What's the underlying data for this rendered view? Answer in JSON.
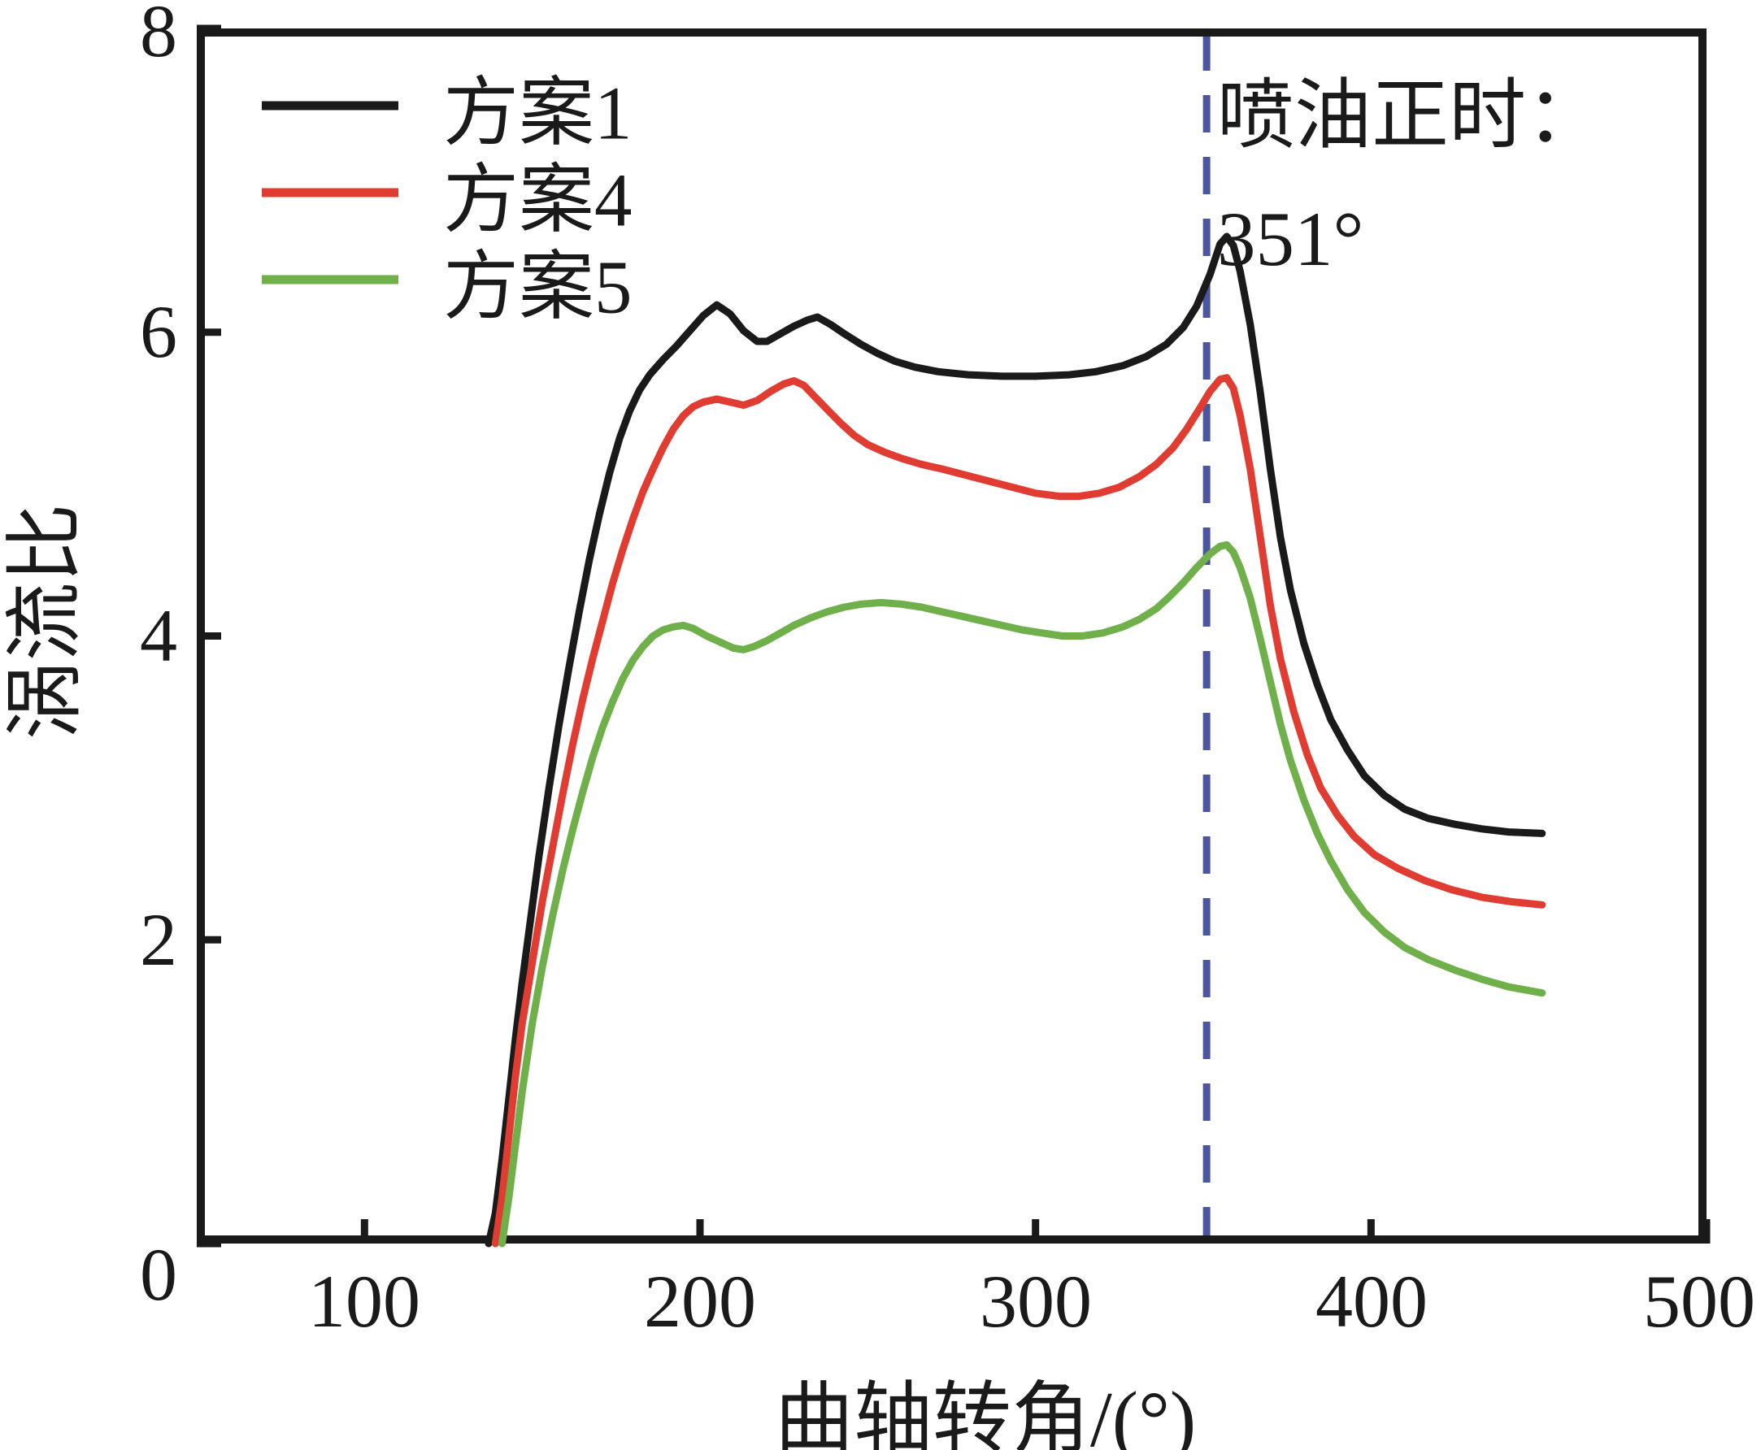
{
  "figure": {
    "background": "#ffffff",
    "axis_color": "#1a1a1a"
  },
  "chart_data": {
    "type": "line",
    "title": "",
    "xlabel": "曲轴转角/(°)",
    "ylabel": "涡流比",
    "xlim": [
      50,
      500
    ],
    "ylim": [
      0,
      8
    ],
    "xticks": [
      100,
      200,
      300,
      400,
      500
    ],
    "yticks": [
      0,
      2,
      4,
      6,
      8
    ],
    "grid": false,
    "legend_position": "upper-left-inside",
    "annotation": {
      "lines": [
        "喷油正时：",
        "351°"
      ],
      "anchor_x": 351,
      "color": "#1a1a1a"
    },
    "reference_line": {
      "type": "vertical-dashed",
      "x": 351,
      "color": "#4a56a0"
    },
    "series": [
      {
        "name": "方案1",
        "color": "#1a1a1a",
        "points": [
          [
            137,
            0
          ],
          [
            139,
            0.2
          ],
          [
            141,
            0.55
          ],
          [
            143,
            0.95
          ],
          [
            145,
            1.35
          ],
          [
            147,
            1.72
          ],
          [
            149,
            2.05
          ],
          [
            152,
            2.55
          ],
          [
            155,
            3.0
          ],
          [
            158,
            3.42
          ],
          [
            161,
            3.8
          ],
          [
            164,
            4.16
          ],
          [
            167,
            4.5
          ],
          [
            170,
            4.8
          ],
          [
            173,
            5.07
          ],
          [
            176,
            5.3
          ],
          [
            179,
            5.48
          ],
          [
            182,
            5.62
          ],
          [
            185,
            5.72
          ],
          [
            189,
            5.82
          ],
          [
            193,
            5.91
          ],
          [
            197,
            6.01
          ],
          [
            201,
            6.11
          ],
          [
            205,
            6.18
          ],
          [
            209,
            6.12
          ],
          [
            213,
            6.01
          ],
          [
            217,
            5.94
          ],
          [
            220,
            5.94
          ],
          [
            224,
            5.99
          ],
          [
            228,
            6.04
          ],
          [
            232,
            6.08
          ],
          [
            235,
            6.1
          ],
          [
            239,
            6.05
          ],
          [
            243,
            5.99
          ],
          [
            248,
            5.92
          ],
          [
            253,
            5.86
          ],
          [
            258,
            5.81
          ],
          [
            264,
            5.77
          ],
          [
            271,
            5.74
          ],
          [
            280,
            5.72
          ],
          [
            290,
            5.71
          ],
          [
            300,
            5.71
          ],
          [
            310,
            5.72
          ],
          [
            318,
            5.74
          ],
          [
            326,
            5.78
          ],
          [
            333,
            5.84
          ],
          [
            339,
            5.92
          ],
          [
            344,
            6.03
          ],
          [
            348,
            6.17
          ],
          [
            352,
            6.38
          ],
          [
            355,
            6.58
          ],
          [
            357,
            6.63
          ],
          [
            359,
            6.57
          ],
          [
            361,
            6.4
          ],
          [
            364,
            6.05
          ],
          [
            367,
            5.6
          ],
          [
            370,
            5.1
          ],
          [
            373,
            4.65
          ],
          [
            376,
            4.3
          ],
          [
            380,
            3.95
          ],
          [
            384,
            3.68
          ],
          [
            388,
            3.45
          ],
          [
            393,
            3.25
          ],
          [
            398,
            3.08
          ],
          [
            404,
            2.95
          ],
          [
            410,
            2.86
          ],
          [
            417,
            2.8
          ],
          [
            425,
            2.76
          ],
          [
            433,
            2.73
          ],
          [
            441,
            2.71
          ],
          [
            451,
            2.7
          ]
        ]
      },
      {
        "name": "方案4",
        "color": "#e03c32",
        "points": [
          [
            139,
            0
          ],
          [
            141,
            0.3
          ],
          [
            143,
            0.7
          ],
          [
            145,
            1.1
          ],
          [
            147,
            1.45
          ],
          [
            150,
            1.85
          ],
          [
            153,
            2.25
          ],
          [
            156,
            2.6
          ],
          [
            159,
            2.95
          ],
          [
            162,
            3.28
          ],
          [
            165,
            3.58
          ],
          [
            168,
            3.85
          ],
          [
            171,
            4.1
          ],
          [
            174,
            4.35
          ],
          [
            177,
            4.57
          ],
          [
            180,
            4.77
          ],
          [
            183,
            4.95
          ],
          [
            186,
            5.1
          ],
          [
            189,
            5.24
          ],
          [
            192,
            5.36
          ],
          [
            195,
            5.45
          ],
          [
            198,
            5.51
          ],
          [
            201,
            5.54
          ],
          [
            205,
            5.56
          ],
          [
            209,
            5.54
          ],
          [
            213,
            5.52
          ],
          [
            217,
            5.55
          ],
          [
            221,
            5.61
          ],
          [
            225,
            5.66
          ],
          [
            228,
            5.68
          ],
          [
            231,
            5.65
          ],
          [
            234,
            5.58
          ],
          [
            238,
            5.49
          ],
          [
            242,
            5.4
          ],
          [
            246,
            5.32
          ],
          [
            250,
            5.26
          ],
          [
            255,
            5.21
          ],
          [
            260,
            5.17
          ],
          [
            266,
            5.13
          ],
          [
            272,
            5.1
          ],
          [
            279,
            5.06
          ],
          [
            286,
            5.02
          ],
          [
            293,
            4.98
          ],
          [
            300,
            4.94
          ],
          [
            307,
            4.92
          ],
          [
            313,
            4.92
          ],
          [
            319,
            4.94
          ],
          [
            325,
            4.98
          ],
          [
            331,
            5.05
          ],
          [
            336,
            5.13
          ],
          [
            341,
            5.24
          ],
          [
            345,
            5.36
          ],
          [
            349,
            5.5
          ],
          [
            352,
            5.61
          ],
          [
            355,
            5.69
          ],
          [
            357,
            5.7
          ],
          [
            359,
            5.63
          ],
          [
            361,
            5.45
          ],
          [
            364,
            5.1
          ],
          [
            367,
            4.65
          ],
          [
            370,
            4.2
          ],
          [
            373,
            3.85
          ],
          [
            377,
            3.5
          ],
          [
            381,
            3.22
          ],
          [
            385,
            3.0
          ],
          [
            390,
            2.82
          ],
          [
            395,
            2.68
          ],
          [
            401,
            2.56
          ],
          [
            408,
            2.47
          ],
          [
            416,
            2.39
          ],
          [
            424,
            2.33
          ],
          [
            433,
            2.28
          ],
          [
            442,
            2.25
          ],
          [
            451,
            2.23
          ]
        ]
      },
      {
        "name": "方案5",
        "color": "#6fb04a",
        "points": [
          [
            141,
            0
          ],
          [
            143,
            0.3
          ],
          [
            145,
            0.65
          ],
          [
            147,
            1.0
          ],
          [
            150,
            1.45
          ],
          [
            153,
            1.82
          ],
          [
            156,
            2.15
          ],
          [
            159,
            2.45
          ],
          [
            162,
            2.72
          ],
          [
            165,
            2.97
          ],
          [
            168,
            3.2
          ],
          [
            171,
            3.4
          ],
          [
            174,
            3.57
          ],
          [
            177,
            3.72
          ],
          [
            180,
            3.84
          ],
          [
            183,
            3.93
          ],
          [
            186,
            4.0
          ],
          [
            189,
            4.04
          ],
          [
            192,
            4.06
          ],
          [
            195,
            4.07
          ],
          [
            198,
            4.05
          ],
          [
            202,
            4.0
          ],
          [
            206,
            3.96
          ],
          [
            210,
            3.92
          ],
          [
            213,
            3.91
          ],
          [
            216,
            3.93
          ],
          [
            220,
            3.97
          ],
          [
            224,
            4.02
          ],
          [
            228,
            4.07
          ],
          [
            233,
            4.12
          ],
          [
            238,
            4.16
          ],
          [
            243,
            4.19
          ],
          [
            248,
            4.21
          ],
          [
            254,
            4.22
          ],
          [
            260,
            4.21
          ],
          [
            266,
            4.19
          ],
          [
            272,
            4.16
          ],
          [
            278,
            4.13
          ],
          [
            284,
            4.1
          ],
          [
            290,
            4.07
          ],
          [
            296,
            4.04
          ],
          [
            302,
            4.02
          ],
          [
            308,
            4.0
          ],
          [
            314,
            4.0
          ],
          [
            320,
            4.02
          ],
          [
            326,
            4.06
          ],
          [
            331,
            4.11
          ],
          [
            336,
            4.18
          ],
          [
            340,
            4.26
          ],
          [
            344,
            4.35
          ],
          [
            348,
            4.45
          ],
          [
            352,
            4.54
          ],
          [
            355,
            4.59
          ],
          [
            357,
            4.6
          ],
          [
            359,
            4.55
          ],
          [
            361,
            4.45
          ],
          [
            364,
            4.25
          ],
          [
            367,
            3.98
          ],
          [
            370,
            3.7
          ],
          [
            373,
            3.42
          ],
          [
            376,
            3.18
          ],
          [
            380,
            2.92
          ],
          [
            384,
            2.7
          ],
          [
            388,
            2.52
          ],
          [
            393,
            2.33
          ],
          [
            398,
            2.18
          ],
          [
            404,
            2.05
          ],
          [
            410,
            1.95
          ],
          [
            417,
            1.87
          ],
          [
            425,
            1.8
          ],
          [
            433,
            1.74
          ],
          [
            441,
            1.69
          ],
          [
            451,
            1.65
          ]
        ]
      }
    ]
  }
}
